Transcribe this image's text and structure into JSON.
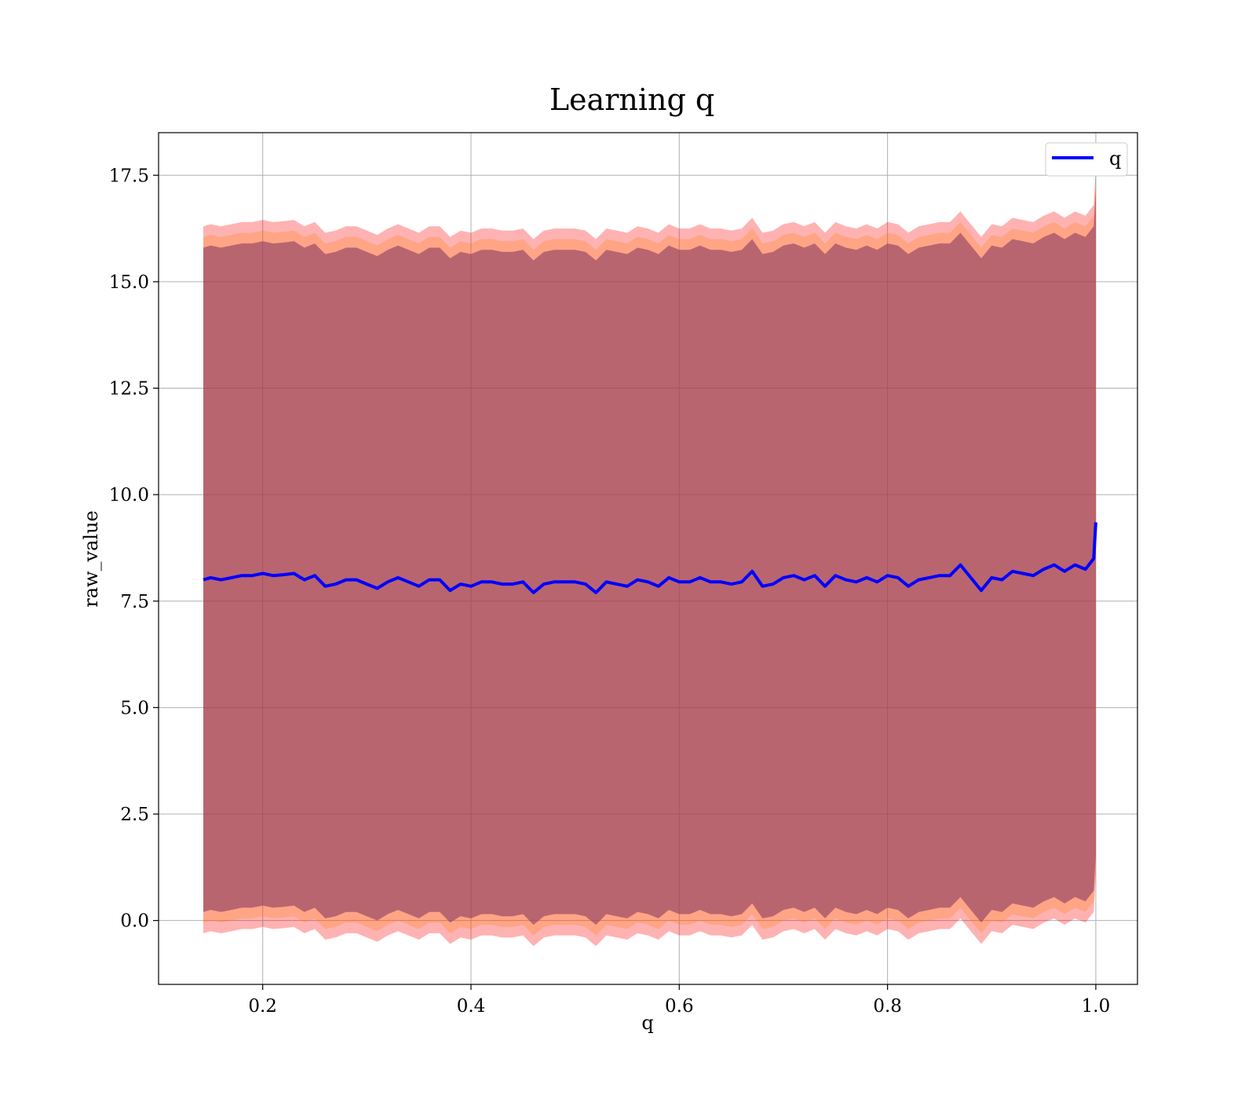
{
  "chart_data": {
    "type": "line",
    "title": "Learning q",
    "xlabel": "q",
    "ylabel": "raw_value",
    "xlim": [
      0.1,
      1.04
    ],
    "ylim": [
      -1.5,
      18.5
    ],
    "xticks": [
      0.2,
      0.4,
      0.6,
      0.8,
      1.0
    ],
    "xtick_labels": [
      "0.2",
      "0.4",
      "0.6",
      "0.8",
      "1.0"
    ],
    "yticks": [
      0.0,
      2.5,
      5.0,
      7.5,
      10.0,
      12.5,
      15.0,
      17.5
    ],
    "ytick_labels": [
      "0.0",
      "2.5",
      "5.0",
      "7.5",
      "10.0",
      "12.5",
      "15.0",
      "17.5"
    ],
    "grid": true,
    "legend": {
      "placement": "top-right",
      "entries": [
        "q"
      ]
    },
    "series": [
      {
        "name": "q",
        "color": "#0000ff",
        "x": [
          0.143,
          0.15,
          0.16,
          0.17,
          0.18,
          0.19,
          0.2,
          0.21,
          0.22,
          0.23,
          0.24,
          0.25,
          0.26,
          0.27,
          0.28,
          0.29,
          0.3,
          0.31,
          0.32,
          0.33,
          0.34,
          0.35,
          0.36,
          0.37,
          0.38,
          0.39,
          0.4,
          0.41,
          0.42,
          0.43,
          0.44,
          0.45,
          0.46,
          0.47,
          0.48,
          0.49,
          0.5,
          0.51,
          0.52,
          0.53,
          0.54,
          0.55,
          0.56,
          0.57,
          0.58,
          0.59,
          0.6,
          0.61,
          0.62,
          0.63,
          0.64,
          0.65,
          0.66,
          0.67,
          0.68,
          0.69,
          0.7,
          0.71,
          0.72,
          0.73,
          0.74,
          0.75,
          0.76,
          0.77,
          0.78,
          0.79,
          0.8,
          0.81,
          0.82,
          0.83,
          0.84,
          0.85,
          0.86,
          0.87,
          0.88,
          0.89,
          0.9,
          0.91,
          0.92,
          0.93,
          0.94,
          0.95,
          0.96,
          0.97,
          0.98,
          0.99,
          0.998,
          1.0
        ],
        "y": [
          8.0,
          8.05,
          8.0,
          8.05,
          8.1,
          8.1,
          8.15,
          8.1,
          8.12,
          8.15,
          8.0,
          8.1,
          7.85,
          7.9,
          8.0,
          8.0,
          7.9,
          7.8,
          7.95,
          8.05,
          7.95,
          7.85,
          8.0,
          8.0,
          7.75,
          7.9,
          7.85,
          7.95,
          7.95,
          7.9,
          7.9,
          7.95,
          7.7,
          7.9,
          7.95,
          7.95,
          7.95,
          7.9,
          7.7,
          7.95,
          7.9,
          7.85,
          8.0,
          7.95,
          7.85,
          8.05,
          7.95,
          7.95,
          8.05,
          7.95,
          7.95,
          7.9,
          7.95,
          8.2,
          7.85,
          7.9,
          8.05,
          8.1,
          8.0,
          8.1,
          7.85,
          8.1,
          8.0,
          7.95,
          8.05,
          7.95,
          8.1,
          8.05,
          7.85,
          8.0,
          8.05,
          8.1,
          8.1,
          8.35,
          8.05,
          7.75,
          8.05,
          8.0,
          8.2,
          8.15,
          8.1,
          8.25,
          8.35,
          8.2,
          8.35,
          8.25,
          8.5,
          9.35
        ]
      }
    ],
    "bands": [
      {
        "color": "#ff0000",
        "alpha": 0.3,
        "center": "q",
        "halfwidth": 8.3
      },
      {
        "color": "#ff8000",
        "alpha": 0.25,
        "center": "q",
        "halfwidth": 8.05
      },
      {
        "color": "#8b3a62",
        "alpha": 0.6,
        "center": "q",
        "halfwidth": 7.8
      }
    ]
  }
}
